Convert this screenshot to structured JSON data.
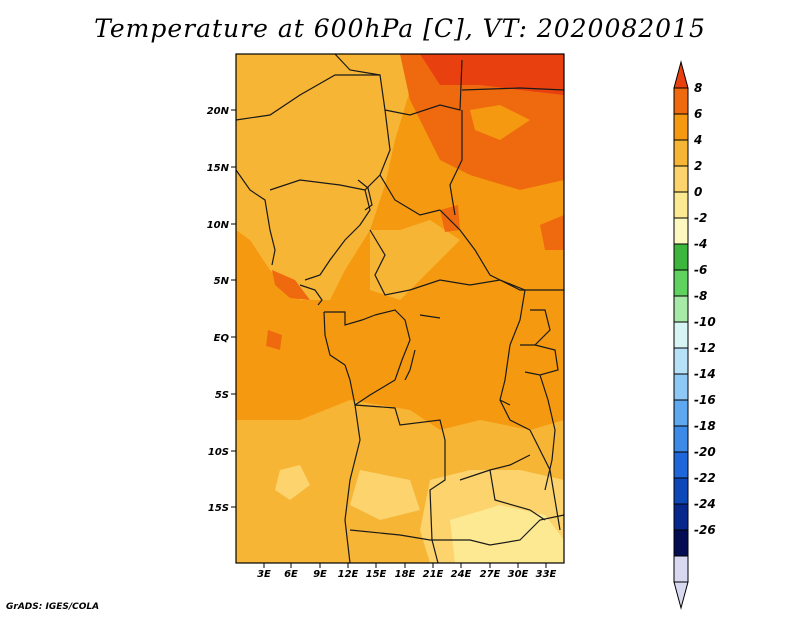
{
  "title": "Temperature at 600hPa [C], VT: 2020082015",
  "credit": "GrADS: IGES/COLA",
  "map": {
    "lon_labels": [
      "3E",
      "6E",
      "9E",
      "12E",
      "15E",
      "18E",
      "21E",
      "24E",
      "27E",
      "30E",
      "33E"
    ],
    "lat_labels": [
      "20N",
      "15N",
      "10N",
      "5N",
      "EQ",
      "5S",
      "10S",
      "15S"
    ],
    "colors": {
      "ocean_base": "#f59a10",
      "warm_mid": "#f7b535",
      "warm_light": "#fcd36c",
      "pale": "#fde992",
      "hot": "#ef6a0e",
      "hottest": "#e8400e",
      "border": "#1a1a1a"
    }
  },
  "colorbar": {
    "labels": [
      "8",
      "6",
      "4",
      "2",
      "0",
      "-2",
      "-4",
      "-6",
      "-8",
      "-10",
      "-12",
      "-14",
      "-16",
      "-18",
      "-20",
      "-22",
      "-24",
      "-26"
    ],
    "colors": [
      "#e8400e",
      "#ef6a0e",
      "#f59a10",
      "#f7b535",
      "#fcd36c",
      "#fde992",
      "#fdf7c0",
      "#3cb63c",
      "#5fd25f",
      "#a7eaa7",
      "#d7f5f5",
      "#b6e1f7",
      "#8ec8f5",
      "#5fa8ef",
      "#3d8be6",
      "#1f66d9",
      "#0e47b8",
      "#08278a",
      "#040d52",
      "#d8d8f0"
    ]
  }
}
